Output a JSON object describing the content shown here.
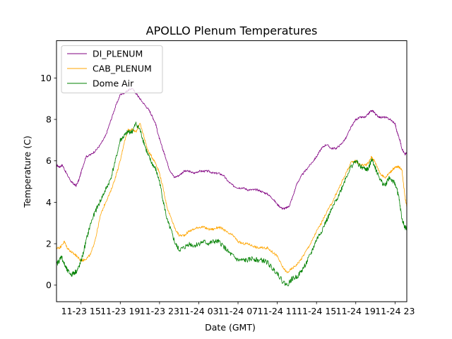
{
  "chart_data": {
    "type": "line",
    "title": "APOLLO Plenum Temperatures",
    "xlabel": "Date (GMT)",
    "ylabel": "Temperature (C)",
    "xlim": [
      12.5,
      48.2
    ],
    "ylim": [
      -0.8,
      11.8
    ],
    "x_ticks": [
      {
        "value": 15,
        "label": "11-23 15"
      },
      {
        "value": 19,
        "label": "11-23 19"
      },
      {
        "value": 23,
        "label": "11-23 23"
      },
      {
        "value": 27,
        "label": "11-24 03"
      },
      {
        "value": 31,
        "label": "11-24 07"
      },
      {
        "value": 35,
        "label": "11-24 11"
      },
      {
        "value": 39,
        "label": "11-24 15"
      },
      {
        "value": 43,
        "label": "11-24 19"
      },
      {
        "value": 47,
        "label": "11-24 23"
      }
    ],
    "y_ticks": [
      {
        "value": 0,
        "label": "0"
      },
      {
        "value": 2,
        "label": "2"
      },
      {
        "value": 4,
        "label": "4"
      },
      {
        "value": 6,
        "label": "6"
      },
      {
        "value": 8,
        "label": "8"
      },
      {
        "value": 10,
        "label": "10"
      }
    ],
    "legend_position": "top-left",
    "x_unit": "hours since 11-23 00:00 GMT",
    "series": [
      {
        "name": "DI_PLENUM",
        "color": "#800080",
        "x": [
          12.5,
          12.8,
          13.1,
          13.5,
          14.0,
          14.2,
          14.5,
          14.8,
          15.1,
          15.5,
          16.0,
          16.5,
          17.0,
          17.5,
          18.0,
          18.5,
          19.0,
          19.5,
          19.8,
          20.2,
          20.7,
          21.0,
          21.5,
          22.0,
          22.3,
          22.6,
          22.9,
          23.3,
          23.6,
          24.0,
          24.5,
          25.0,
          25.5,
          26.0,
          26.5,
          27.0,
          27.5,
          28.0,
          28.5,
          29.0,
          29.5,
          30.0,
          30.5,
          31.0,
          31.5,
          32.0,
          32.5,
          33.0,
          33.5,
          34.0,
          34.5,
          35.0,
          35.5,
          35.8,
          36.2,
          36.6,
          37.0,
          37.5,
          38.0,
          38.5,
          39.0,
          39.5,
          40.0,
          40.5,
          41.0,
          41.5,
          42.0,
          42.5,
          43.0,
          43.5,
          44.0,
          44.5,
          44.8,
          45.1,
          45.5,
          46.0,
          46.5,
          47.0,
          47.2,
          47.5,
          47.7,
          48.0,
          48.2
        ],
        "y": [
          5.8,
          5.7,
          5.8,
          5.4,
          5.0,
          4.9,
          4.8,
          5.1,
          5.6,
          6.2,
          6.3,
          6.5,
          6.8,
          7.2,
          7.9,
          8.6,
          9.2,
          9.3,
          9.4,
          9.5,
          9.2,
          9.0,
          8.7,
          8.4,
          8.1,
          7.8,
          7.2,
          6.6,
          6.2,
          5.6,
          5.2,
          5.3,
          5.5,
          5.5,
          5.4,
          5.5,
          5.5,
          5.5,
          5.4,
          5.4,
          5.3,
          5.0,
          4.8,
          4.7,
          4.7,
          4.6,
          4.6,
          4.6,
          4.5,
          4.4,
          4.2,
          3.9,
          3.7,
          3.7,
          3.8,
          4.3,
          4.9,
          5.3,
          5.6,
          5.9,
          6.2,
          6.6,
          6.8,
          6.6,
          6.6,
          6.8,
          7.1,
          7.6,
          8.0,
          8.1,
          8.1,
          8.4,
          8.4,
          8.2,
          8.1,
          8.1,
          8.0,
          7.8,
          7.4,
          7.0,
          6.6,
          6.3,
          6.4
        ]
      },
      {
        "name": "CAB_PLENUM",
        "color": "#ffa500",
        "x": [
          12.5,
          12.8,
          13.0,
          13.3,
          13.6,
          14.0,
          14.3,
          14.6,
          14.9,
          15.2,
          15.6,
          16.0,
          16.5,
          17.0,
          17.5,
          18.0,
          18.5,
          19.0,
          19.4,
          19.8,
          20.2,
          20.6,
          21.0,
          21.4,
          21.8,
          22.2,
          22.6,
          23.0,
          23.4,
          23.8,
          24.2,
          24.6,
          25.0,
          25.5,
          26.0,
          26.5,
          27.0,
          27.5,
          28.0,
          28.5,
          29.0,
          29.5,
          30.0,
          30.5,
          31.0,
          31.5,
          32.0,
          32.5,
          33.0,
          33.5,
          34.0,
          34.5,
          35.0,
          35.5,
          36.0,
          36.5,
          37.0,
          37.5,
          38.0,
          38.5,
          39.0,
          39.5,
          40.0,
          40.5,
          41.0,
          41.5,
          42.0,
          42.5,
          43.0,
          43.5,
          44.0,
          44.3,
          44.6,
          44.9,
          45.2,
          45.6,
          46.0,
          46.4,
          46.8,
          47.1,
          47.4,
          47.7,
          48.0,
          48.2
        ],
        "y": [
          1.8,
          1.8,
          1.9,
          2.1,
          1.8,
          1.6,
          1.5,
          1.4,
          1.2,
          1.2,
          1.3,
          1.5,
          2.3,
          3.4,
          4.0,
          4.5,
          5.2,
          6.0,
          6.9,
          7.5,
          7.5,
          7.4,
          7.8,
          7.2,
          6.5,
          6.2,
          5.9,
          5.4,
          4.6,
          3.7,
          3.2,
          2.7,
          2.4,
          2.4,
          2.6,
          2.7,
          2.8,
          2.8,
          2.7,
          2.7,
          2.8,
          2.7,
          2.5,
          2.4,
          2.1,
          2.0,
          2.0,
          1.9,
          1.8,
          1.8,
          1.8,
          1.6,
          1.4,
          0.9,
          0.6,
          0.8,
          1.0,
          1.3,
          1.7,
          2.1,
          2.6,
          3.0,
          3.5,
          3.9,
          4.4,
          4.9,
          5.4,
          5.9,
          6.0,
          5.8,
          5.8,
          5.9,
          6.2,
          6.0,
          5.7,
          5.3,
          5.2,
          5.4,
          5.6,
          5.7,
          5.7,
          5.6,
          4.3,
          3.8
        ]
      },
      {
        "name": "Dome Air",
        "color": "#008000",
        "x": [
          12.5,
          12.8,
          13.0,
          13.3,
          13.6,
          14.0,
          14.3,
          14.6,
          14.9,
          15.2,
          15.6,
          16.0,
          16.5,
          17.0,
          17.5,
          18.0,
          18.5,
          19.0,
          19.4,
          19.8,
          20.2,
          20.6,
          21.0,
          21.4,
          21.8,
          22.2,
          22.6,
          23.0,
          23.4,
          23.8,
          24.2,
          24.6,
          25.0,
          25.5,
          26.0,
          26.5,
          27.0,
          27.5,
          28.0,
          28.5,
          29.0,
          29.5,
          30.0,
          30.5,
          31.0,
          31.5,
          32.0,
          32.5,
          33.0,
          33.5,
          34.0,
          34.5,
          35.0,
          35.5,
          36.0,
          36.5,
          37.0,
          37.5,
          38.0,
          38.5,
          39.0,
          39.5,
          40.0,
          40.5,
          41.0,
          41.5,
          42.0,
          42.5,
          43.0,
          43.5,
          44.0,
          44.3,
          44.6,
          44.9,
          45.2,
          45.6,
          46.0,
          46.4,
          46.8,
          47.1,
          47.4,
          47.7,
          48.0,
          48.2
        ],
        "y": [
          1.0,
          1.2,
          1.4,
          1.0,
          0.7,
          0.5,
          0.6,
          0.7,
          1.0,
          1.5,
          2.3,
          3.0,
          3.6,
          4.1,
          4.6,
          5.1,
          6.0,
          7.0,
          7.2,
          7.4,
          7.4,
          7.8,
          7.5,
          6.9,
          6.3,
          5.9,
          5.6,
          5.0,
          4.0,
          3.1,
          2.6,
          2.0,
          1.7,
          1.8,
          2.0,
          1.9,
          2.0,
          2.1,
          2.0,
          2.1,
          2.1,
          1.9,
          1.6,
          1.4,
          1.2,
          1.2,
          1.2,
          1.3,
          1.2,
          1.2,
          1.1,
          0.8,
          0.6,
          0.2,
          0.0,
          0.3,
          0.4,
          0.7,
          1.1,
          1.6,
          2.2,
          2.6,
          3.1,
          3.6,
          4.1,
          4.6,
          5.2,
          5.7,
          6.0,
          5.7,
          5.6,
          5.6,
          6.1,
          5.8,
          5.4,
          5.0,
          4.8,
          5.2,
          5.0,
          4.8,
          4.2,
          3.2,
          2.8,
          2.7
        ]
      }
    ]
  }
}
